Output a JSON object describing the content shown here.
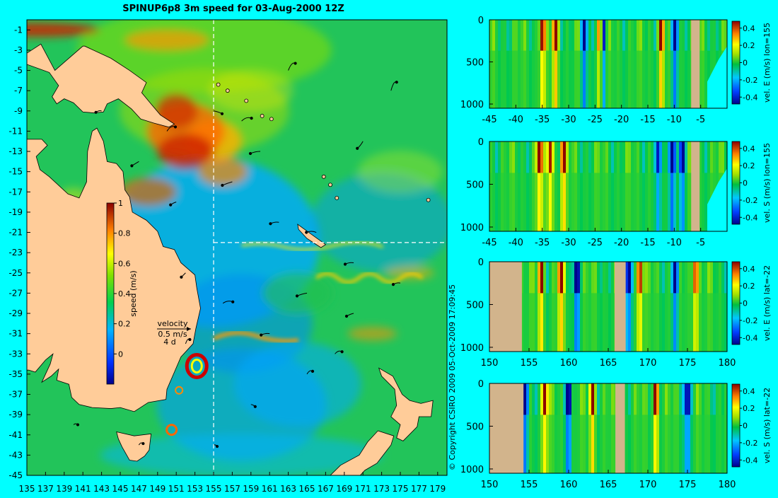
{
  "title": "SPINUP6p8 3m speed for 03-Aug-2000 12Z",
  "copyright": "© Copyright CSIRO 2009   05-Oct-2009 17:09:45",
  "chart_data": [
    {
      "type": "heatmap",
      "title": "SPINUP6p8 3m speed for 03-Aug-2000 12Z",
      "x_ticks": [
        "135",
        "137",
        "139",
        "141",
        "143",
        "145",
        "147",
        "149",
        "151",
        "153",
        "155",
        "157",
        "159",
        "161",
        "163",
        "165",
        "167",
        "169",
        "171",
        "173",
        "175",
        "177",
        "179"
      ],
      "y_ticks": [
        "-1",
        "-3",
        "-5",
        "-7",
        "-9",
        "-11",
        "-13",
        "-15",
        "-17",
        "-19",
        "-21",
        "-23",
        "-25",
        "-27",
        "-29",
        "-31",
        "-33",
        "-35",
        "-37",
        "-39",
        "-41",
        "-43",
        "-45"
      ],
      "xlim": [
        135,
        180
      ],
      "ylim": [
        -45,
        0
      ],
      "section_lines": {
        "lon": 155,
        "lat": -22
      },
      "colorbar": {
        "label": "speed (m/s)",
        "ticks": [
          "1",
          "0.8",
          "0.6",
          "0.4",
          "0.2",
          "0"
        ],
        "range": [
          -0.2,
          1
        ]
      },
      "legend": {
        "label": "velocity",
        "scale": "0.5 m/s",
        "duration": "4 d"
      }
    },
    {
      "type": "heatmap",
      "x_ticks": [
        "-45",
        "-40",
        "-35",
        "-30",
        "-25",
        "-20",
        "-15",
        "-10",
        "-5"
      ],
      "y_ticks": [
        "0",
        "500",
        "1000"
      ],
      "xlim": [
        -45,
        0
      ],
      "ylim": [
        1050,
        0
      ],
      "colorbar": {
        "label": "vel. E (m/s) lon=155",
        "ticks": [
          "0.4",
          "0.2",
          "0",
          "-0.2",
          "-0.4"
        ]
      },
      "high_bands": [
        -35,
        -32.5,
        -24,
        -12.5
      ],
      "low_bands": [
        -27,
        -23.5,
        -10
      ],
      "land": [
        [
          -6.8,
          -5.2
        ]
      ]
    },
    {
      "type": "heatmap",
      "x_ticks": [
        "-45",
        "-40",
        "-35",
        "-30",
        "-25",
        "-20",
        "-15",
        "-10",
        "-5"
      ],
      "y_ticks": [
        "0",
        "500",
        "1000"
      ],
      "xlim": [
        -45,
        0
      ],
      "ylim": [
        1050,
        0
      ],
      "colorbar": {
        "label": "vel. S (m/s) lon=155",
        "ticks": [
          "0.4",
          "0.2",
          "0",
          "-0.2",
          "-0.4"
        ]
      },
      "high_bands": [
        -35.5,
        -33.5,
        -31
      ],
      "low_bands": [
        -13,
        -10.5,
        -8.5
      ],
      "land": [
        [
          -6.8,
          -5.2
        ]
      ]
    },
    {
      "type": "heatmap",
      "x_ticks": [
        "150",
        "155",
        "160",
        "165",
        "170",
        "175",
        "180"
      ],
      "y_ticks": [
        "0",
        "500",
        "1000"
      ],
      "xlim": [
        150,
        180
      ],
      "ylim": [
        1050,
        0
      ],
      "colorbar": {
        "label": "vel. E (m/s) lat=-22",
        "ticks": [
          "0.4",
          "0.2",
          "0",
          "-0.2",
          "-0.4"
        ]
      },
      "high_bands": [
        156.5,
        159,
        169,
        176
      ],
      "low_bands": [
        161,
        167.5,
        173.5
      ],
      "land": [
        [
          150,
          154.1
        ],
        [
          165.8,
          167.2
        ]
      ]
    },
    {
      "type": "heatmap",
      "x_ticks": [
        "150",
        "155",
        "160",
        "165",
        "170",
        "175",
        "180"
      ],
      "y_ticks": [
        "0",
        "500",
        "1000"
      ],
      "xlim": [
        150,
        180
      ],
      "ylim": [
        1050,
        0
      ],
      "colorbar": {
        "label": "vel. S (m/s) lat=-22",
        "ticks": [
          "0.4",
          "0.2",
          "0",
          "-0.2",
          "-0.4"
        ]
      },
      "high_bands": [
        157,
        163,
        171
      ],
      "low_bands": [
        154.5,
        160,
        175
      ],
      "land": [
        [
          150,
          154.3
        ],
        [
          165.9,
          167.1
        ]
      ]
    }
  ]
}
